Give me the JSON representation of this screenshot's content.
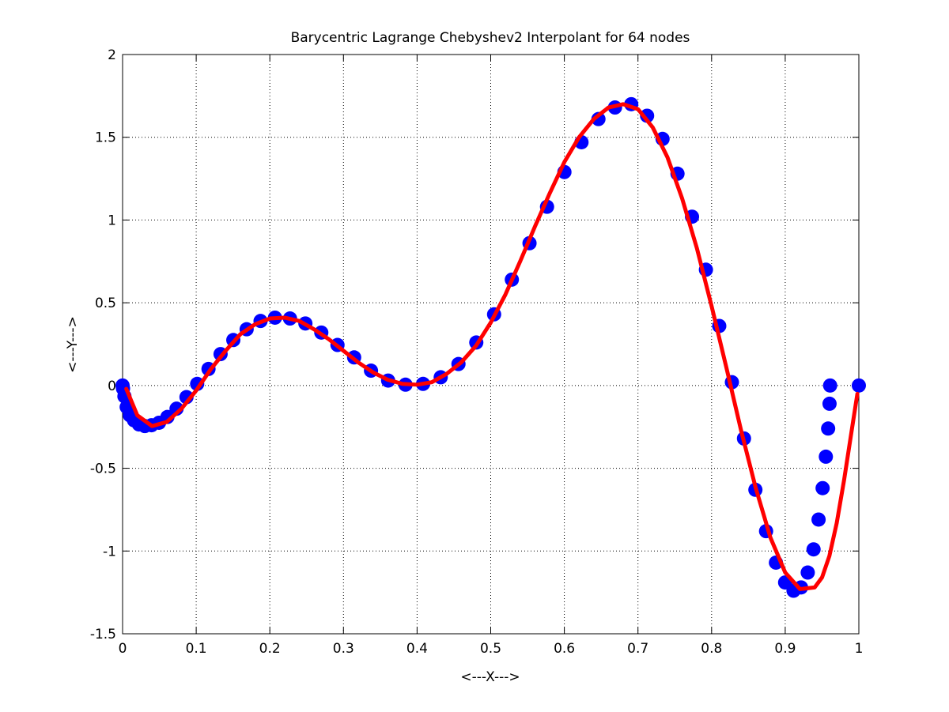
{
  "chart_data": {
    "type": "line",
    "title": "Barycentric Lagrange Chebyshev2 Interpolant for 64 nodes",
    "xlabel": "<---X--->",
    "ylabel": "<---Y--->",
    "xlim": [
      0,
      1
    ],
    "ylim": [
      -1.5,
      2
    ],
    "xticks": [
      0,
      0.1,
      0.2,
      0.3,
      0.4,
      0.5,
      0.6,
      0.7,
      0.8,
      0.9,
      1
    ],
    "xtick_labels": [
      "0",
      "0.1",
      "0.2",
      "0.3",
      "0.4",
      "0.5",
      "0.6",
      "0.7",
      "0.8",
      "0.9",
      "1"
    ],
    "yticks": [
      -1.5,
      -1,
      -0.5,
      0,
      0.5,
      1,
      1.5,
      2
    ],
    "ytick_labels": [
      "-1.5",
      "-1",
      "-0.5",
      "0",
      "0.5",
      "1",
      "1.5",
      "2"
    ],
    "grid": true,
    "colors": {
      "nodes": "#0000ff",
      "interpolant": "#ff0000"
    },
    "series": [
      {
        "kind": "markers",
        "x": [
          0.0,
          0.0006,
          0.0025,
          0.0056,
          0.0099,
          0.0155,
          0.0222,
          0.0302,
          0.0393,
          0.0495,
          0.0609,
          0.0733,
          0.0868,
          0.1013,
          0.1167,
          0.1331,
          0.1504,
          0.1685,
          0.1874,
          0.207,
          0.2274,
          0.2483,
          0.2699,
          0.2919,
          0.3145,
          0.3374,
          0.3607,
          0.3843,
          0.4081,
          0.4321,
          0.4562,
          0.4804,
          0.5046,
          0.5287,
          0.5527,
          0.5765,
          0.6001,
          0.6233,
          0.6463,
          0.6688,
          0.6909,
          0.7124,
          0.7334,
          0.7537,
          0.7734,
          0.7923,
          0.8104,
          0.8276,
          0.844,
          0.8595,
          0.874,
          0.8874,
          0.8999,
          0.9113,
          0.9215,
          0.9306,
          0.9385,
          0.9453,
          0.9508,
          0.9552,
          0.9583,
          0.9602,
          0.961,
          1.0
        ],
        "y": [
          0.0,
          -0.018,
          -0.065,
          -0.13,
          -0.18,
          -0.21,
          -0.235,
          -0.245,
          -0.24,
          -0.225,
          -0.19,
          -0.14,
          -0.07,
          0.01,
          0.1,
          0.19,
          0.275,
          0.34,
          0.39,
          0.41,
          0.405,
          0.375,
          0.32,
          0.245,
          0.17,
          0.09,
          0.03,
          0.005,
          0.01,
          0.05,
          0.13,
          0.26,
          0.43,
          0.64,
          0.86,
          1.08,
          1.29,
          1.47,
          1.61,
          1.68,
          1.7,
          1.63,
          1.49,
          1.28,
          1.02,
          0.7,
          0.36,
          0.02,
          -0.32,
          -0.63,
          -0.88,
          -1.07,
          -1.19,
          -1.24,
          -1.22,
          -1.13,
          -0.99,
          -0.81,
          -0.62,
          -0.43,
          -0.26,
          -0.11,
          0.0,
          0.0
        ]
      },
      {
        "kind": "line",
        "x": [
          0.005,
          0.02,
          0.04,
          0.06,
          0.08,
          0.1,
          0.12,
          0.14,
          0.16,
          0.18,
          0.2,
          0.22,
          0.24,
          0.26,
          0.28,
          0.3,
          0.32,
          0.34,
          0.36,
          0.38,
          0.4,
          0.42,
          0.44,
          0.46,
          0.48,
          0.5,
          0.52,
          0.54,
          0.56,
          0.58,
          0.6,
          0.62,
          0.64,
          0.66,
          0.68,
          0.7,
          0.72,
          0.74,
          0.76,
          0.78,
          0.8,
          0.82,
          0.84,
          0.86,
          0.88,
          0.9,
          0.92,
          0.94,
          0.95,
          0.96,
          0.97,
          0.98,
          0.99,
          0.998
        ],
        "y": [
          -0.02,
          -0.18,
          -0.245,
          -0.22,
          -0.14,
          -0.03,
          0.1,
          0.21,
          0.31,
          0.37,
          0.405,
          0.41,
          0.39,
          0.34,
          0.28,
          0.21,
          0.14,
          0.08,
          0.035,
          0.01,
          0.005,
          0.02,
          0.07,
          0.14,
          0.24,
          0.38,
          0.55,
          0.75,
          0.96,
          1.16,
          1.35,
          1.5,
          1.61,
          1.68,
          1.7,
          1.67,
          1.56,
          1.38,
          1.13,
          0.83,
          0.48,
          0.11,
          -0.27,
          -0.62,
          -0.92,
          -1.13,
          -1.23,
          -1.22,
          -1.16,
          -1.03,
          -0.83,
          -0.57,
          -0.28,
          -0.05
        ]
      }
    ]
  }
}
